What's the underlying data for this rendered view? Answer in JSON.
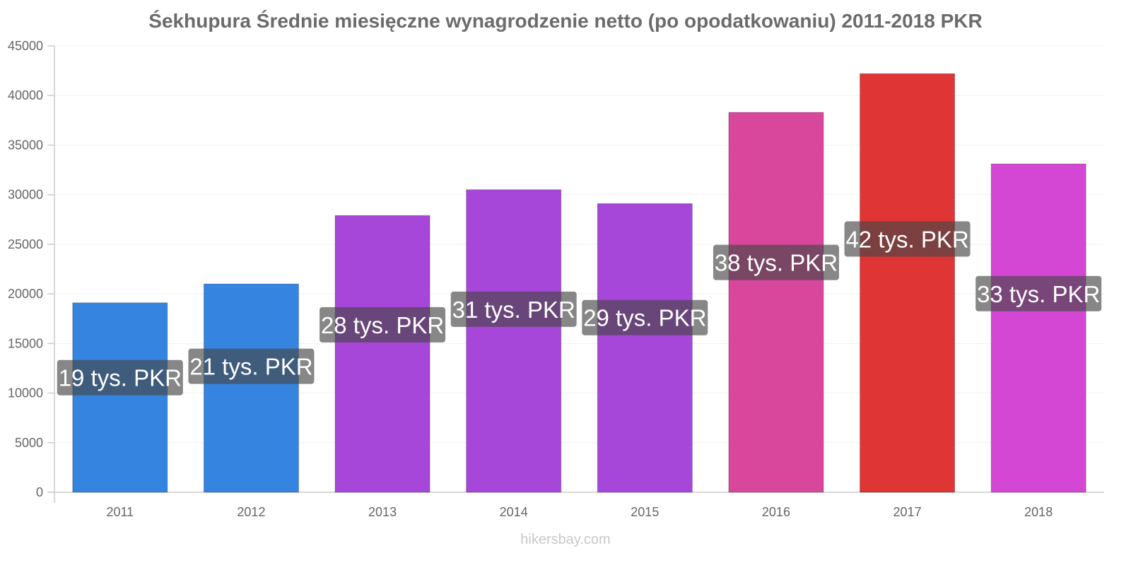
{
  "chart_data": {
    "type": "bar",
    "title": "Śekhupura Średnie miesięczne wynagrodzenie netto (po opodatkowaniu) 2011-2018 PKR",
    "xlabel": "",
    "ylabel": "",
    "categories": [
      "2011",
      "2012",
      "2013",
      "2014",
      "2015",
      "2016",
      "2017",
      "2018"
    ],
    "values": [
      19100,
      21000,
      27900,
      30500,
      29100,
      38300,
      42200,
      33100
    ],
    "data_labels": [
      "19 tys. PKR",
      "21 tys. PKR",
      "28 tys. PKR",
      "31 tys. PKR",
      "29 tys. PKR",
      "38 tys. PKR",
      "42 tys. PKR",
      "33 tys. PKR"
    ],
    "bar_colors": [
      "#3584df",
      "#3584df",
      "#a747d9",
      "#a747d9",
      "#a747d9",
      "#d8479b",
      "#e03535",
      "#d447d4"
    ],
    "ylim": [
      0,
      45000
    ],
    "yticks": [
      0,
      5000,
      10000,
      15000,
      20000,
      25000,
      30000,
      35000,
      40000,
      45000
    ],
    "grid": true,
    "legend": "none"
  },
  "watermark": "hikersbay.com"
}
